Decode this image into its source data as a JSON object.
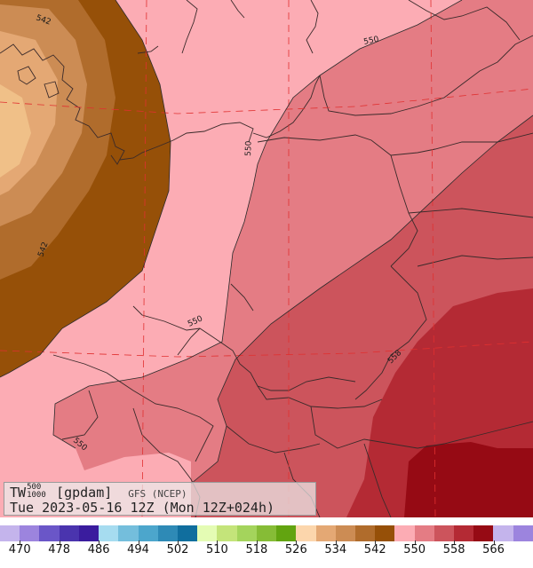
{
  "map": {
    "info": {
      "var_main": "TW",
      "var_sup": "500",
      "var_sub": "1000",
      "unit": "[gpdam]",
      "model": "GFS (NCEP)",
      "valid_line": "Tue 2023-05-16 12Z (Mon 12Z+024h)"
    },
    "contour_labels": [
      "542",
      "542",
      "550",
      "550",
      "550",
      "550",
      "558"
    ],
    "legend": {
      "colors": [
        "#c4b4ec",
        "#9c84de",
        "#6a56c8",
        "#4a34ae",
        "#3a1c9e",
        "#a6dcf0",
        "#74bedc",
        "#4ca6cc",
        "#2e8ab6",
        "#106e9e",
        "#e4fcb4",
        "#c4e47a",
        "#a4d45c",
        "#86bc36",
        "#62a410",
        "#fcd6ac",
        "#e4a874",
        "#cc8c54",
        "#b06c2c",
        "#965008",
        "#fcacb4",
        "#e47c84",
        "#cc545c",
        "#b42a34",
        "#960a14",
        "#c4b4ec",
        "#9c84de"
      ],
      "tick_labels": [
        "470",
        "478",
        "486",
        "494",
        "502",
        "510",
        "518",
        "526",
        "534",
        "542",
        "550",
        "558",
        "566"
      ]
    },
    "colors": {
      "band_526_534": "#fcd6ac",
      "band_534_542": "#e4a874",
      "band_538": "#cc8c54",
      "band_542": "#965008",
      "band_550": "#fcacb4",
      "band_554": "#e47c84",
      "band_558": "#cc545c",
      "band_562": "#b42a34",
      "band_566": "#960a14"
    }
  }
}
